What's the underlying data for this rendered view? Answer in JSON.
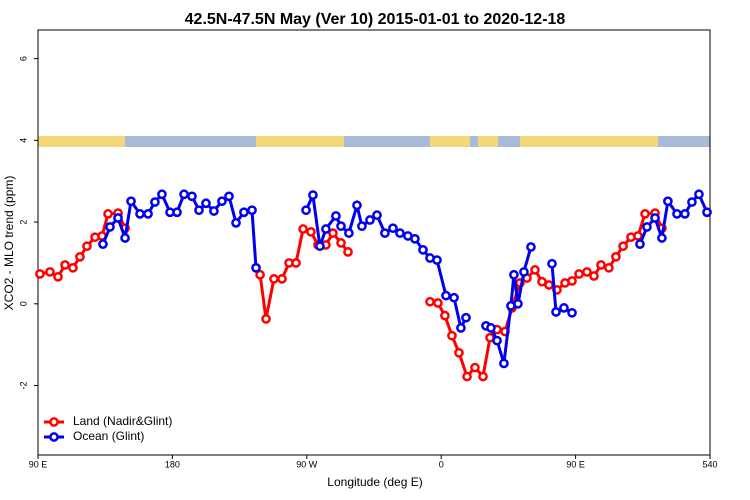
{
  "chart_data": {
    "type": "line",
    "title": "42.5N-47.5N May (Ver 10)   2015-01-01 to 2020-12-18",
    "x_label": "Longitude (deg E)",
    "y_label": "XCO2 - MLO trend (ppm)",
    "xlim": [
      90,
      540
    ],
    "ylim": [
      -3.7,
      6.7
    ],
    "xticks": [
      {
        "value": 90,
        "label": "90 E"
      },
      180,
      {
        "value": 270,
        "label": "90 W"
      },
      {
        "value": 360,
        "label": "0"
      },
      {
        "value": 450,
        "label": "90 E"
      },
      540
    ],
    "yticks": [
      -2,
      0,
      2,
      4,
      6
    ],
    "legend": "bottom-left",
    "series": [
      {
        "name": "Land (Nadir&Glint)",
        "color": "#ff0000",
        "x": [
          91.3,
          98.0,
          103.4,
          108.1,
          113.4,
          118.1,
          122.8,
          128.2,
          132.9,
          136.9,
          143.6,
          148.3,
          null,
          238.7,
          242.7,
          248.0,
          253.4,
          258.1,
          262.8,
          267.5,
          272.8,
          277.5,
          282.8,
          287.5,
          292.9,
          297.6,
          null,
          352.5,
          357.8,
          362.5,
          367.2,
          371.9,
          377.3,
          382.6,
          388.0,
          392.7,
          397.4,
          402.7,
          407.4,
          412.7,
          417.4,
          422.8,
          427.5,
          432.2,
          437.5,
          442.9,
          447.6,
          452.3,
          457.6,
          462.3,
          467.0,
          472.3,
          477.0,
          481.8,
          487.1,
          491.8,
          496.5,
          503.2,
          507.8
        ],
        "values": [
          0.73,
          0.78,
          0.66,
          0.95,
          0.88,
          1.15,
          1.41,
          1.63,
          1.66,
          2.2,
          2.22,
          1.85,
          null,
          0.71,
          -0.37,
          0.61,
          0.61,
          1.0,
          1.0,
          1.83,
          1.76,
          1.44,
          1.44,
          1.73,
          1.49,
          1.27,
          null,
          0.05,
          0.02,
          -0.29,
          -0.78,
          -1.2,
          -1.78,
          -1.56,
          -1.78,
          -0.83,
          -0.63,
          -0.68,
          -0.1,
          0.51,
          0.63,
          0.83,
          0.54,
          0.46,
          0.34,
          0.51,
          0.56,
          0.73,
          0.78,
          0.68,
          0.95,
          0.88,
          1.15,
          1.41,
          1.63,
          1.66,
          2.2,
          2.22,
          1.85
        ]
      },
      {
        "name": "Ocean (Glint)",
        "color": "#0000ee",
        "x": [
          133.5,
          138.2,
          143.6,
          148.3,
          152.3,
          158.3,
          163.7,
          168.3,
          173.0,
          178.4,
          183.1,
          187.8,
          193.1,
          197.8,
          202.5,
          207.8,
          213.2,
          217.9,
          222.6,
          227.9,
          233.3,
          236.0,
          null,
          269.5,
          274.1,
          278.8,
          282.8,
          289.5,
          292.9,
          298.2,
          303.6,
          306.9,
          312.3,
          317.0,
          322.3,
          327.7,
          332.4,
          337.7,
          342.4,
          347.8,
          352.5,
          357.2,
          363.2,
          368.6,
          373.2,
          376.6,
          null,
          390.0,
          393.3,
          397.4,
          402.0,
          406.7,
          408.7,
          411.4,
          415.4,
          420.1,
          null,
          434.2,
          436.9,
          442.2,
          447.6,
          null,
          493.1,
          497.8,
          503.2,
          507.8,
          511.8,
          517.9,
          523.2,
          527.9,
          532.6,
          538.0
        ],
        "values": [
          1.46,
          1.88,
          2.1,
          1.61,
          2.51,
          2.2,
          2.2,
          2.49,
          2.68,
          2.24,
          2.24,
          2.68,
          2.63,
          2.29,
          2.46,
          2.27,
          2.51,
          2.63,
          1.98,
          2.24,
          2.29,
          0.88,
          null,
          2.29,
          2.66,
          1.41,
          1.83,
          2.15,
          1.9,
          1.73,
          2.41,
          1.9,
          2.05,
          2.17,
          1.73,
          1.85,
          1.73,
          1.66,
          1.59,
          1.32,
          1.12,
          1.07,
          0.2,
          0.15,
          -0.59,
          -0.34,
          null,
          -0.54,
          -0.59,
          -0.9,
          -1.46,
          -0.05,
          0.71,
          0.0,
          0.78,
          1.39,
          null,
          0.98,
          -0.2,
          -0.1,
          -0.22,
          null,
          1.46,
          1.88,
          2.1,
          1.61,
          2.51,
          2.2,
          2.2,
          2.49,
          2.68,
          2.24
        ]
      }
    ]
  }
}
